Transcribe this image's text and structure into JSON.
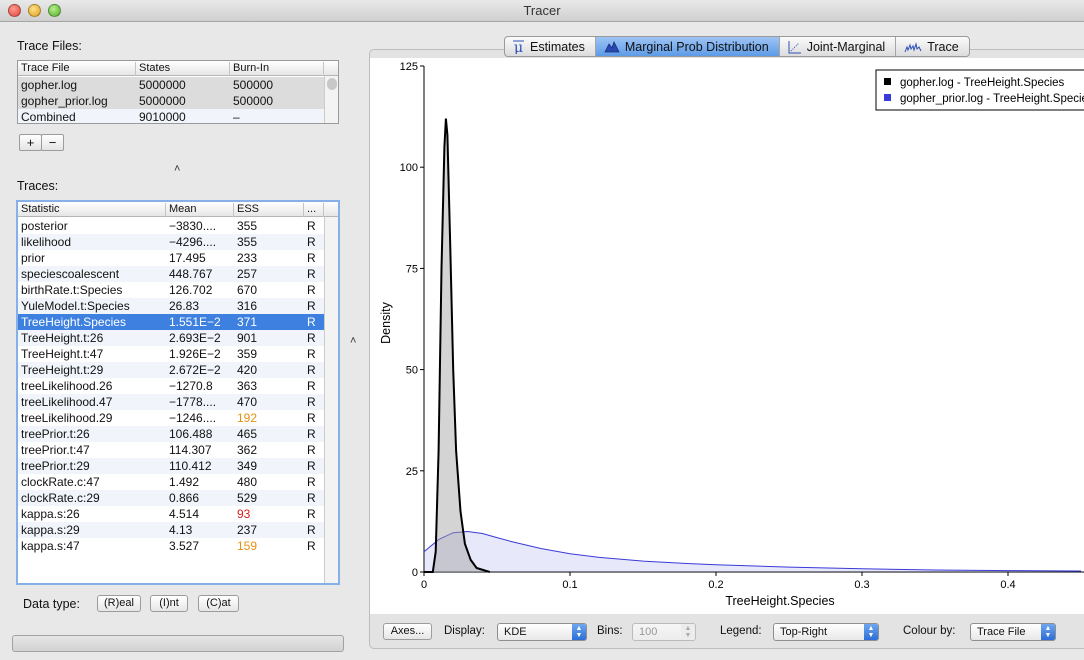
{
  "window": {
    "title": "Tracer"
  },
  "trace_files": {
    "label": "Trace Files:",
    "columns": [
      "Trace File",
      "States",
      "Burn-In"
    ],
    "rows": [
      {
        "file": "gopher.log",
        "states": "5000000",
        "burnin": "500000"
      },
      {
        "file": "gopher_prior.log",
        "states": "5000000",
        "burnin": "500000"
      },
      {
        "file": "Combined",
        "states": "9010000",
        "burnin": "–"
      }
    ],
    "add_label": "+",
    "remove_label": "−"
  },
  "traces": {
    "label": "Traces:",
    "columns": [
      "Statistic",
      "Mean",
      "ESS",
      "..."
    ],
    "rows": [
      {
        "stat": "posterior",
        "mean": "−3830....",
        "ess": "355",
        "type": "R"
      },
      {
        "stat": "likelihood",
        "mean": "−4296....",
        "ess": "355",
        "type": "R"
      },
      {
        "stat": "prior",
        "mean": "17.495",
        "ess": "233",
        "type": "R"
      },
      {
        "stat": "speciescoalescent",
        "mean": "448.767",
        "ess": "257",
        "type": "R"
      },
      {
        "stat": "birthRate.t:Species",
        "mean": "126.702",
        "ess": "670",
        "type": "R"
      },
      {
        "stat": "YuleModel.t:Species",
        "mean": "26.83",
        "ess": "316",
        "type": "R"
      },
      {
        "stat": "TreeHeight.Species",
        "mean": "1.551E−2",
        "ess": "371",
        "type": "R"
      },
      {
        "stat": "TreeHeight.t:26",
        "mean": "2.693E−2",
        "ess": "901",
        "type": "R"
      },
      {
        "stat": "TreeHeight.t:47",
        "mean": "1.926E−2",
        "ess": "359",
        "type": "R"
      },
      {
        "stat": "TreeHeight.t:29",
        "mean": "2.672E−2",
        "ess": "420",
        "type": "R"
      },
      {
        "stat": "treeLikelihood.26",
        "mean": "−1270.8",
        "ess": "363",
        "type": "R"
      },
      {
        "stat": "treeLikelihood.47",
        "mean": "−1778....",
        "ess": "470",
        "type": "R"
      },
      {
        "stat": "treeLikelihood.29",
        "mean": "−1246....",
        "ess": "192",
        "type": "R"
      },
      {
        "stat": "treePrior.t:26",
        "mean": "106.488",
        "ess": "465",
        "type": "R"
      },
      {
        "stat": "treePrior.t:47",
        "mean": "114.307",
        "ess": "362",
        "type": "R"
      },
      {
        "stat": "treePrior.t:29",
        "mean": "110.412",
        "ess": "349",
        "type": "R"
      },
      {
        "stat": "clockRate.c:47",
        "mean": "1.492",
        "ess": "480",
        "type": "R"
      },
      {
        "stat": "clockRate.c:29",
        "mean": "0.866",
        "ess": "529",
        "type": "R"
      },
      {
        "stat": "kappa.s:26",
        "mean": "4.514",
        "ess": "93",
        "type": "R"
      },
      {
        "stat": "kappa.s:29",
        "mean": "4.13",
        "ess": "237",
        "type": "R"
      },
      {
        "stat": "kappa.s:47",
        "mean": "3.527",
        "ess": "159",
        "type": "R"
      }
    ],
    "selected_row": "TreeHeight.Species",
    "ess_low_color": "#d42020",
    "ess_warn_color": "#e8900e"
  },
  "data_type": {
    "label": "Data type:",
    "buttons": [
      "(R)eal",
      "(I)nt",
      "(C)at"
    ]
  },
  "tabs": [
    {
      "label": "Estimates",
      "icon": "mu-icon",
      "active": false
    },
    {
      "label": "Marginal Prob Distribution",
      "icon": "distribution-icon",
      "active": true
    },
    {
      "label": "Joint-Marginal",
      "icon": "scatter-icon",
      "active": false
    },
    {
      "label": "Trace",
      "icon": "trace-wave-icon",
      "active": false
    }
  ],
  "controls": {
    "axes_label": "Axes...",
    "display_label": "Display:",
    "display_value": "KDE",
    "bins_label": "Bins:",
    "bins_value": "100",
    "legend_label": "Legend:",
    "legend_value": "Top-Right",
    "colour_label": "Colour by:",
    "colour_value": "Trace File"
  },
  "chart_data": {
    "type": "area",
    "xlabel": "TreeHeight.Species",
    "ylabel": "Density",
    "xlim": [
      0,
      0.45
    ],
    "ylim": [
      0,
      125
    ],
    "xticks": [
      "0",
      "0.1",
      "0.2",
      "0.3",
      "0.4"
    ],
    "xtick_values": [
      0,
      0.1,
      0.2,
      0.3,
      0.4
    ],
    "yticks": [
      "0",
      "25",
      "50",
      "75",
      "100",
      "125"
    ],
    "ytick_values": [
      0,
      25,
      50,
      75,
      100,
      125
    ],
    "legend_position": "top-right",
    "series": [
      {
        "name": "gopher.log - TreeHeight.Species",
        "color": "#000000",
        "x": [
          0,
          0.006,
          0.008,
          0.01,
          0.012,
          0.014,
          0.015,
          0.016,
          0.018,
          0.02,
          0.022,
          0.025,
          0.028,
          0.032,
          0.036,
          0.045
        ],
        "y": [
          0,
          0,
          5,
          30,
          75,
          105,
          112,
          108,
          80,
          50,
          30,
          15,
          7,
          3,
          1,
          0
        ]
      },
      {
        "name": "gopher_prior.log - TreeHeight.Species",
        "color": "#3a3ad8",
        "x": [
          0,
          0.01,
          0.02,
          0.03,
          0.04,
          0.05,
          0.06,
          0.08,
          0.1,
          0.12,
          0.15,
          0.18,
          0.2,
          0.25,
          0.3,
          0.35,
          0.4,
          0.45
        ],
        "y": [
          5,
          8,
          9.7,
          10,
          9.5,
          8.5,
          7.5,
          5.8,
          4.5,
          3.6,
          2.7,
          2.1,
          1.8,
          1.2,
          0.8,
          0.5,
          0.35,
          0.25
        ]
      }
    ]
  }
}
